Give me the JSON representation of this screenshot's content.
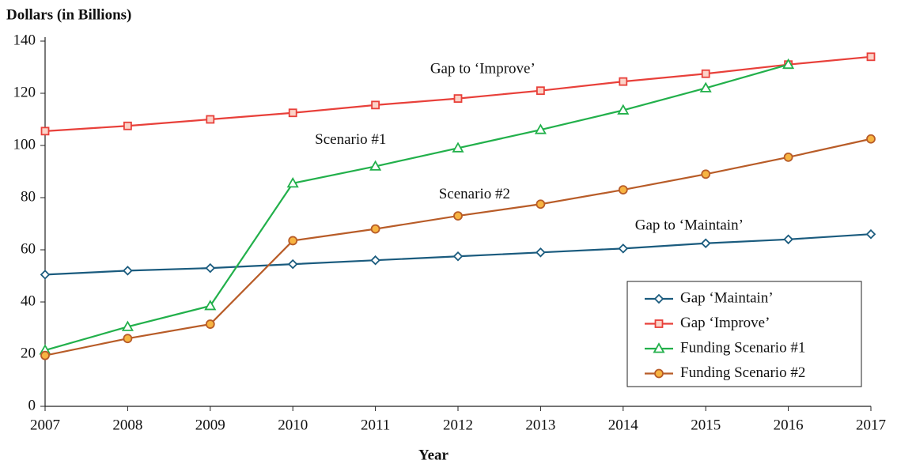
{
  "chart_data": {
    "type": "line",
    "y_label": "Dollars (in Billions)",
    "x_label": "Year",
    "x": [
      2007,
      2008,
      2009,
      2010,
      2011,
      2012,
      2013,
      2014,
      2015,
      2016,
      2017
    ],
    "xlim": [
      2007,
      2017
    ],
    "xticks": [
      2007,
      2008,
      2009,
      2010,
      2011,
      2012,
      2013,
      2014,
      2015,
      2016,
      2017
    ],
    "ylim": [
      0,
      140
    ],
    "yticks": [
      0,
      20,
      40,
      60,
      80,
      100,
      120,
      140
    ],
    "legend": "lower right",
    "series": [
      {
        "name": "Gap ‘Maintain’",
        "color": "#1a5b7e",
        "marker": "diamond",
        "marker_fill": "#ffffff",
        "values": [
          50.5,
          52,
          53,
          54.5,
          56,
          57.5,
          59,
          60.5,
          62.5,
          64,
          66
        ]
      },
      {
        "name": "Gap ‘Improve’",
        "color": "#e8403a",
        "marker": "square",
        "marker_fill": "#fbd3c8",
        "values": [
          105.5,
          107.5,
          110,
          112.5,
          115.5,
          118,
          121,
          124.5,
          127.5,
          131,
          134
        ]
      },
      {
        "name": "Funding Scenario #1",
        "color": "#22b04b",
        "marker": "triangle",
        "marker_fill": "#ffffff",
        "values": [
          21.5,
          30.5,
          38.5,
          85.5,
          92,
          99,
          106,
          113.5,
          122,
          131,
          null
        ]
      },
      {
        "name": "Funding Scenario #2",
        "color": "#b85c28",
        "marker": "circle",
        "marker_fill": "#f7b441",
        "values": [
          19.5,
          26,
          31.5,
          63.5,
          68,
          73,
          77.5,
          83,
          89,
          95.5,
          102.5
        ]
      }
    ],
    "annotations": [
      {
        "text": "Gap to ‘Improve’",
        "x": 2012.3,
        "y": 129
      },
      {
        "text": "Scenario #1",
        "x": 2010.7,
        "y": 102
      },
      {
        "text": "Scenario #2",
        "x": 2012.2,
        "y": 81
      },
      {
        "text": "Gap to ‘Maintain’",
        "x": 2014.8,
        "y": 69
      }
    ]
  }
}
